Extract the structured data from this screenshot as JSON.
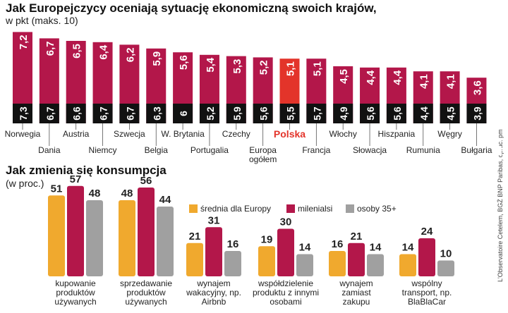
{
  "source": "L'Observatoire Cetelem, BGŻ BNP Paribas, oprac. pm",
  "chart_data": [
    {
      "type": "bar_pair",
      "title": "Jak Europejczycy oceniają sytuację ekonomiczną swoich krajów,",
      "subtitle": "w pkt (maks. 10)",
      "categories": [
        "Norwegia",
        "Dania",
        "Austria",
        "Niemcy",
        "Szwecja",
        "Belgia",
        "W. Brytania",
        "Portugalia",
        "Czechy",
        "Europa ogółem",
        "Polska",
        "Francja",
        "Włochy",
        "Słowacja",
        "Hiszpania",
        "Rumunia",
        "Węgry",
        "Bułgaria"
      ],
      "highlight": "Polska",
      "highlight_color": "#e3342a",
      "series": [
        {
          "color": "#b3174a",
          "values": [
            7.2,
            6.7,
            6.5,
            6.4,
            6.2,
            5.9,
            5.6,
            5.4,
            5.3,
            5.2,
            5.1,
            5.1,
            4.5,
            4.4,
            4.4,
            4.1,
            4.1,
            3.6
          ],
          "value_labels": [
            "7,2",
            "6,7",
            "6,5",
            "6,4",
            "6,2",
            "5,9",
            "5,6",
            "5,4",
            "5,3",
            "5,2",
            "5,1",
            "5,1",
            "4,5",
            "4,4",
            "4,4",
            "4,1",
            "4,1",
            "3,6"
          ]
        },
        {
          "color": "#111111",
          "values": [
            7.3,
            6.7,
            6.6,
            6.7,
            6.7,
            6.3,
            6,
            5.2,
            5.9,
            5.6,
            5.5,
            5.7,
            4.9,
            5.6,
            5.6,
            4.4,
            4.5,
            3.9
          ],
          "value_labels": [
            "7,3",
            "6,7",
            "6,6",
            "6,7",
            "6,7",
            "6,3",
            "6",
            "5,2",
            "5,9",
            "5,6",
            "5,5",
            "5,7",
            "4,9",
            "5,6",
            "5,6",
            "4,4",
            "4,5",
            "3,9"
          ]
        }
      ]
    },
    {
      "type": "bar",
      "title": "Jak zmienia się konsumpcja",
      "subtitle": "(w proc.)",
      "categories": [
        "kupowanie produktów używanych",
        "sprzedawanie produktów używanych",
        "wynajem wakacyjny, np. Airbnb",
        "współdzielenie produktu z innymi osobami",
        "wynajem zamiast zakupu",
        "wspólny transport, np. BlaBlaCar"
      ],
      "ylim": [
        0,
        60
      ],
      "series": [
        {
          "name": "średnia dla Europy",
          "color": "#f0a92e",
          "values": [
            51,
            48,
            21,
            19,
            16,
            14
          ]
        },
        {
          "name": "milenialsi",
          "color": "#b3174a",
          "values": [
            57,
            56,
            31,
            30,
            21,
            24
          ]
        },
        {
          "name": "osoby 35+",
          "color": "#a0a0a0",
          "values": [
            48,
            44,
            16,
            14,
            14,
            10
          ]
        }
      ]
    }
  ]
}
